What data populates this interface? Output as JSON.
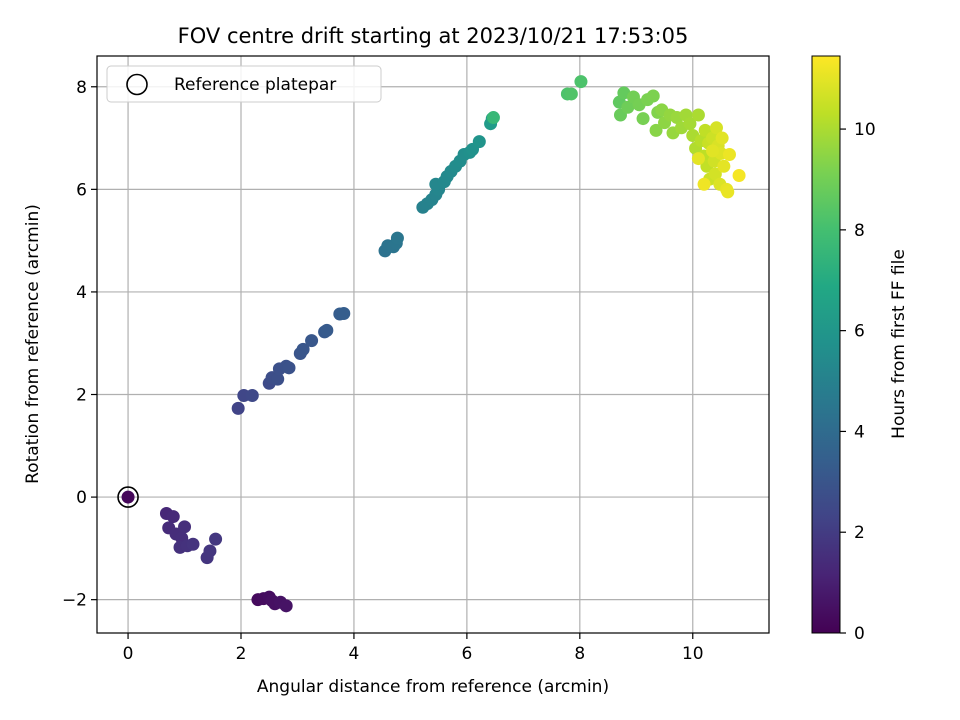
{
  "chart_data": {
    "type": "scatter",
    "title": "FOV centre drift starting at 2023/10/21 17:53:05",
    "xlabel": "Angular distance from reference (arcmin)",
    "ylabel": "Rotation from reference (arcmin)",
    "xlim": [
      -0.55,
      11.35
    ],
    "ylim": [
      -2.65,
      8.6
    ],
    "x_ticks": [
      0,
      2,
      4,
      6,
      8,
      10
    ],
    "y_ticks": [
      -2,
      0,
      2,
      4,
      6,
      8
    ],
    "x_tick_labels": [
      "0",
      "2",
      "4",
      "6",
      "8",
      "10"
    ],
    "y_tick_labels": [
      "−2",
      "0",
      "2",
      "4",
      "6",
      "8"
    ],
    "grid": true,
    "legend": {
      "position": "top-left",
      "entries": [
        {
          "label": "Reference platepar",
          "marker": "open-circle"
        }
      ]
    },
    "colorbar": {
      "label": "Hours from first FF file",
      "colormap": "viridis",
      "range": [
        0,
        11.45
      ],
      "ticks": [
        0,
        2,
        4,
        6,
        8,
        10
      ],
      "tick_labels": [
        "0",
        "2",
        "4",
        "6",
        "8",
        "10"
      ]
    },
    "reference_point": {
      "x": 0,
      "y": 0,
      "t": 0.2
    },
    "points": [
      {
        "x": 2.3,
        "y": -2.0,
        "t": 0.3
      },
      {
        "x": 2.4,
        "y": -1.98,
        "t": 0.35
      },
      {
        "x": 2.5,
        "y": -1.95,
        "t": 0.4
      },
      {
        "x": 2.55,
        "y": -2.02,
        "t": 0.45
      },
      {
        "x": 2.6,
        "y": -2.08,
        "t": 0.5
      },
      {
        "x": 2.7,
        "y": -2.05,
        "t": 0.55
      },
      {
        "x": 2.8,
        "y": -2.12,
        "t": 0.6
      },
      {
        "x": 0.68,
        "y": -0.32,
        "t": 1.3
      },
      {
        "x": 0.8,
        "y": -0.38,
        "t": 1.35
      },
      {
        "x": 0.72,
        "y": -0.6,
        "t": 1.4
      },
      {
        "x": 0.85,
        "y": -0.72,
        "t": 1.45
      },
      {
        "x": 0.95,
        "y": -0.8,
        "t": 1.5
      },
      {
        "x": 1.0,
        "y": -0.58,
        "t": 1.55
      },
      {
        "x": 0.92,
        "y": -0.98,
        "t": 1.6
      },
      {
        "x": 1.05,
        "y": -0.95,
        "t": 1.65
      },
      {
        "x": 1.15,
        "y": -0.92,
        "t": 1.7
      },
      {
        "x": 1.4,
        "y": -1.18,
        "t": 1.75
      },
      {
        "x": 1.45,
        "y": -1.05,
        "t": 1.8
      },
      {
        "x": 1.55,
        "y": -0.82,
        "t": 1.85
      },
      {
        "x": 1.95,
        "y": 1.73,
        "t": 2.3
      },
      {
        "x": 2.05,
        "y": 1.98,
        "t": 2.4
      },
      {
        "x": 2.2,
        "y": 1.98,
        "t": 2.5
      },
      {
        "x": 2.5,
        "y": 2.22,
        "t": 2.6
      },
      {
        "x": 2.55,
        "y": 2.33,
        "t": 2.7
      },
      {
        "x": 2.65,
        "y": 2.3,
        "t": 2.75
      },
      {
        "x": 2.68,
        "y": 2.5,
        "t": 2.8
      },
      {
        "x": 2.8,
        "y": 2.55,
        "t": 2.85
      },
      {
        "x": 2.85,
        "y": 2.52,
        "t": 2.9
      },
      {
        "x": 3.05,
        "y": 2.8,
        "t": 3.0
      },
      {
        "x": 3.1,
        "y": 2.88,
        "t": 3.05
      },
      {
        "x": 3.25,
        "y": 3.05,
        "t": 3.1
      },
      {
        "x": 3.48,
        "y": 3.22,
        "t": 3.2
      },
      {
        "x": 3.52,
        "y": 3.25,
        "t": 3.25
      },
      {
        "x": 3.75,
        "y": 3.57,
        "t": 3.35
      },
      {
        "x": 3.82,
        "y": 3.58,
        "t": 3.4
      },
      {
        "x": 4.55,
        "y": 4.8,
        "t": 4.3
      },
      {
        "x": 4.6,
        "y": 4.9,
        "t": 4.35
      },
      {
        "x": 4.7,
        "y": 4.88,
        "t": 4.4
      },
      {
        "x": 4.75,
        "y": 4.95,
        "t": 4.45
      },
      {
        "x": 4.77,
        "y": 5.05,
        "t": 4.5
      },
      {
        "x": 5.22,
        "y": 5.65,
        "t": 5.0
      },
      {
        "x": 5.3,
        "y": 5.72,
        "t": 5.05
      },
      {
        "x": 5.38,
        "y": 5.8,
        "t": 5.1
      },
      {
        "x": 5.45,
        "y": 5.9,
        "t": 5.15
      },
      {
        "x": 5.5,
        "y": 6.0,
        "t": 5.2
      },
      {
        "x": 5.45,
        "y": 6.1,
        "t": 5.25
      },
      {
        "x": 5.6,
        "y": 6.15,
        "t": 5.3
      },
      {
        "x": 5.65,
        "y": 6.25,
        "t": 5.35
      },
      {
        "x": 5.72,
        "y": 6.35,
        "t": 5.4
      },
      {
        "x": 5.8,
        "y": 6.45,
        "t": 5.5
      },
      {
        "x": 5.88,
        "y": 6.55,
        "t": 5.55
      },
      {
        "x": 5.95,
        "y": 6.68,
        "t": 5.6
      },
      {
        "x": 6.05,
        "y": 6.72,
        "t": 5.7
      },
      {
        "x": 6.1,
        "y": 6.78,
        "t": 5.75
      },
      {
        "x": 6.22,
        "y": 6.93,
        "t": 5.85
      },
      {
        "x": 6.42,
        "y": 7.28,
        "t": 6.2
      },
      {
        "x": 6.45,
        "y": 7.38,
        "t": 6.3
      },
      {
        "x": 6.47,
        "y": 7.4,
        "t": 7.6
      },
      {
        "x": 7.78,
        "y": 7.86,
        "t": 8.2
      },
      {
        "x": 7.85,
        "y": 7.86,
        "t": 8.3
      },
      {
        "x": 8.02,
        "y": 8.1,
        "t": 8.2
      },
      {
        "x": 8.7,
        "y": 7.7,
        "t": 8.6
      },
      {
        "x": 8.78,
        "y": 7.88,
        "t": 8.7
      },
      {
        "x": 8.72,
        "y": 7.45,
        "t": 8.8
      },
      {
        "x": 8.85,
        "y": 7.6,
        "t": 8.9
      },
      {
        "x": 8.95,
        "y": 7.8,
        "t": 9.0
      },
      {
        "x": 9.05,
        "y": 7.65,
        "t": 9.05
      },
      {
        "x": 9.12,
        "y": 7.38,
        "t": 9.1
      },
      {
        "x": 9.2,
        "y": 7.75,
        "t": 9.15
      },
      {
        "x": 9.3,
        "y": 7.82,
        "t": 9.2
      },
      {
        "x": 9.38,
        "y": 7.5,
        "t": 9.3
      },
      {
        "x": 9.35,
        "y": 7.15,
        "t": 9.4
      },
      {
        "x": 9.45,
        "y": 7.55,
        "t": 9.45
      },
      {
        "x": 9.5,
        "y": 7.3,
        "t": 9.5
      },
      {
        "x": 9.6,
        "y": 7.45,
        "t": 9.6
      },
      {
        "x": 9.65,
        "y": 7.1,
        "t": 9.65
      },
      {
        "x": 9.72,
        "y": 7.4,
        "t": 9.7
      },
      {
        "x": 9.8,
        "y": 7.2,
        "t": 9.8
      },
      {
        "x": 9.88,
        "y": 7.45,
        "t": 9.85
      },
      {
        "x": 9.95,
        "y": 7.28,
        "t": 9.9
      },
      {
        "x": 10.0,
        "y": 7.05,
        "t": 10.0
      },
      {
        "x": 10.05,
        "y": 6.8,
        "t": 10.1
      },
      {
        "x": 10.1,
        "y": 7.45,
        "t": 10.0
      },
      {
        "x": 10.15,
        "y": 6.95,
        "t": 10.2
      },
      {
        "x": 10.2,
        "y": 6.65,
        "t": 10.3
      },
      {
        "x": 10.22,
        "y": 7.15,
        "t": 10.35
      },
      {
        "x": 10.25,
        "y": 6.45,
        "t": 10.4
      },
      {
        "x": 10.28,
        "y": 6.9,
        "t": 10.5
      },
      {
        "x": 10.3,
        "y": 6.2,
        "t": 10.55
      },
      {
        "x": 10.35,
        "y": 7.0,
        "t": 10.6
      },
      {
        "x": 10.38,
        "y": 6.55,
        "t": 10.65
      },
      {
        "x": 10.4,
        "y": 6.3,
        "t": 10.7
      },
      {
        "x": 10.42,
        "y": 7.2,
        "t": 10.75
      },
      {
        "x": 10.45,
        "y": 6.85,
        "t": 10.8
      },
      {
        "x": 10.48,
        "y": 6.1,
        "t": 10.85
      },
      {
        "x": 10.5,
        "y": 6.7,
        "t": 10.9
      },
      {
        "x": 10.52,
        "y": 7.0,
        "t": 10.95
      },
      {
        "x": 10.55,
        "y": 6.45,
        "t": 11.0
      },
      {
        "x": 10.6,
        "y": 6.0,
        "t": 11.05
      },
      {
        "x": 10.62,
        "y": 5.95,
        "t": 11.1
      },
      {
        "x": 10.65,
        "y": 6.68,
        "t": 11.15
      },
      {
        "x": 10.82,
        "y": 6.27,
        "t": 11.3
      },
      {
        "x": 10.2,
        "y": 6.1,
        "t": 11.2
      },
      {
        "x": 10.1,
        "y": 6.6,
        "t": 11.0
      },
      {
        "x": 10.35,
        "y": 6.75,
        "t": 10.95
      }
    ]
  }
}
